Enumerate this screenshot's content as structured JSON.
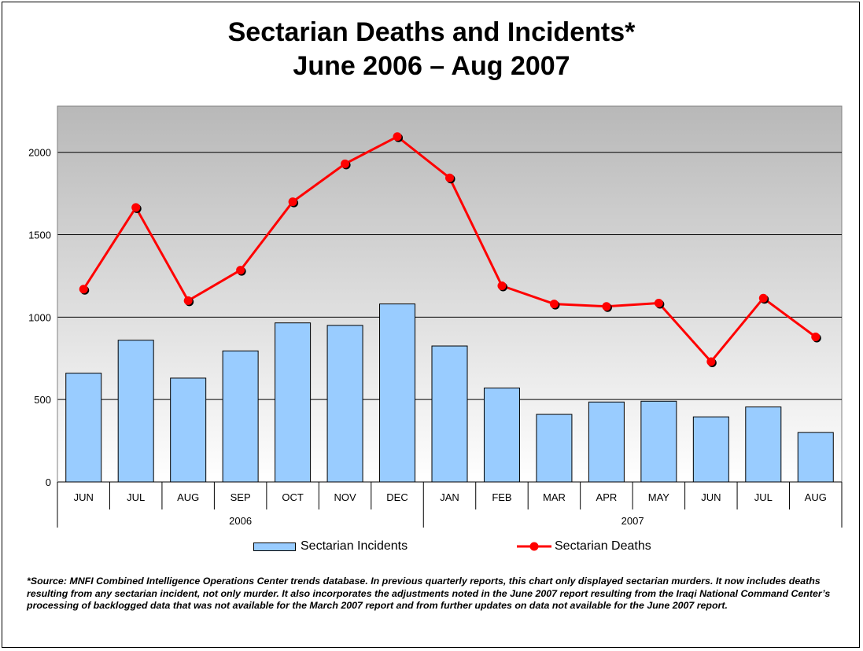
{
  "title_line1": "Sectarian Deaths and Incidents*",
  "title_line2": "June 2006 – Aug 2007",
  "footnote": "*Source:  MNFI Combined Intelligence Operations Center trends database.  In previous quarterly reports, this chart only displayed sectarian murders.  It now includes deaths resulting from any sectarian incident, not only murder.  It also incorporates the adjustments noted in the June 2007 report resulting from the Iraqi National Command Center’s processing of backlogged data that was not available for the March 2007 report and from further updates on data not available for the June 2007 report.",
  "legend": {
    "incidents_label": "Sectarian Incidents",
    "deaths_label": "Sectarian Deaths"
  },
  "colors": {
    "bar_fill": "#99ccff",
    "line": "#ff0000",
    "plot_top": "#b8b8b8",
    "plot_bottom": "#ffffff"
  },
  "chart_data": {
    "type": "bar",
    "categories": [
      "JUN",
      "JUL",
      "AUG",
      "SEP",
      "OCT",
      "NOV",
      "DEC",
      "JAN",
      "FEB",
      "MAR",
      "APR",
      "MAY",
      "JUN",
      "JUL",
      "AUG"
    ],
    "year_groups": [
      {
        "label": "2006",
        "count": 7
      },
      {
        "label": "2007",
        "count": 8
      }
    ],
    "series": [
      {
        "name": "Sectarian Incidents",
        "type": "bar",
        "values": [
          660,
          860,
          630,
          795,
          965,
          950,
          1080,
          825,
          570,
          410,
          485,
          490,
          395,
          455,
          300
        ]
      },
      {
        "name": "Sectarian Deaths",
        "type": "line",
        "values": [
          1170,
          1665,
          1100,
          1285,
          1700,
          1930,
          2095,
          1845,
          1190,
          1080,
          1065,
          1085,
          730,
          1115,
          880
        ]
      }
    ],
    "yticks": [
      0,
      500,
      1000,
      1500,
      2000
    ],
    "ylim": [
      0,
      2280
    ],
    "grid": true,
    "legend_position": "bottom"
  }
}
